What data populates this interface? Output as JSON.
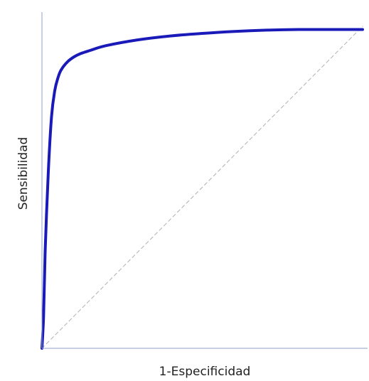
{
  "chart_data": {
    "type": "line",
    "title": "",
    "xlabel": "1-Especificidad",
    "ylabel": "Sensibilidad",
    "xlim": [
      0,
      1
    ],
    "ylim": [
      0,
      1
    ],
    "grid": false,
    "legend": "none",
    "series": [
      {
        "color": "#1a1ab8",
        "x": [
          0,
          0.005,
          0.01,
          0.02,
          0.03,
          0.04,
          0.05,
          0.06,
          0.08,
          0.1,
          0.12,
          0.15,
          0.2,
          0.3,
          0.4,
          0.5,
          0.6,
          0.7,
          0.8,
          0.9,
          1.0
        ],
        "y": [
          0,
          0.1,
          0.3,
          0.55,
          0.72,
          0.8,
          0.84,
          0.865,
          0.89,
          0.905,
          0.915,
          0.925,
          0.94,
          0.958,
          0.97,
          0.978,
          0.984,
          0.988,
          0.99,
          0.99,
          0.99
        ]
      },
      {
        "color": "#b0b0b0",
        "style": "dashed",
        "x": [
          0,
          1
        ],
        "y": [
          0,
          1
        ]
      }
    ]
  }
}
